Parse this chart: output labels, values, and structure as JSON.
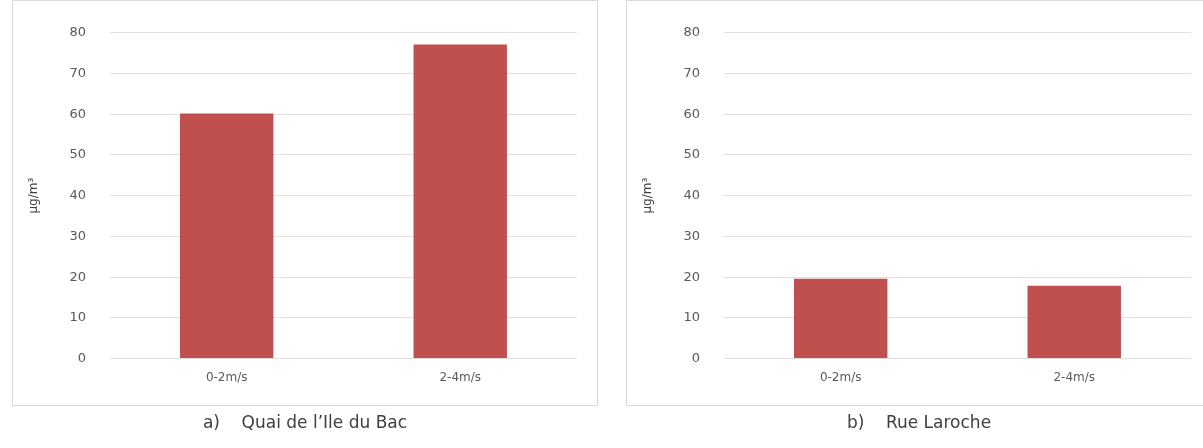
{
  "chart_data": [
    {
      "type": "bar",
      "title": "a)    Quai de l’Ile du Bac",
      "ylabel": "µg/m³",
      "categories": [
        "0-2m/s",
        "2-4m/s"
      ],
      "values": [
        60.2,
        77.1
      ],
      "color": "#c0504d",
      "ylim": [
        0,
        80
      ],
      "yticks": [
        0,
        10,
        20,
        30,
        40,
        50,
        60,
        70,
        80
      ],
      "grid": "y"
    },
    {
      "type": "bar",
      "title": "b)    Rue Laroche",
      "ylabel": "µg/m³",
      "categories": [
        "0-2m/s",
        "2-4m/s"
      ],
      "values": [
        19.6,
        17.9
      ],
      "color": "#c0504d",
      "ylim": [
        0,
        80
      ],
      "yticks": [
        0,
        10,
        20,
        30,
        40,
        50,
        60,
        70,
        80
      ],
      "grid": "y"
    }
  ]
}
